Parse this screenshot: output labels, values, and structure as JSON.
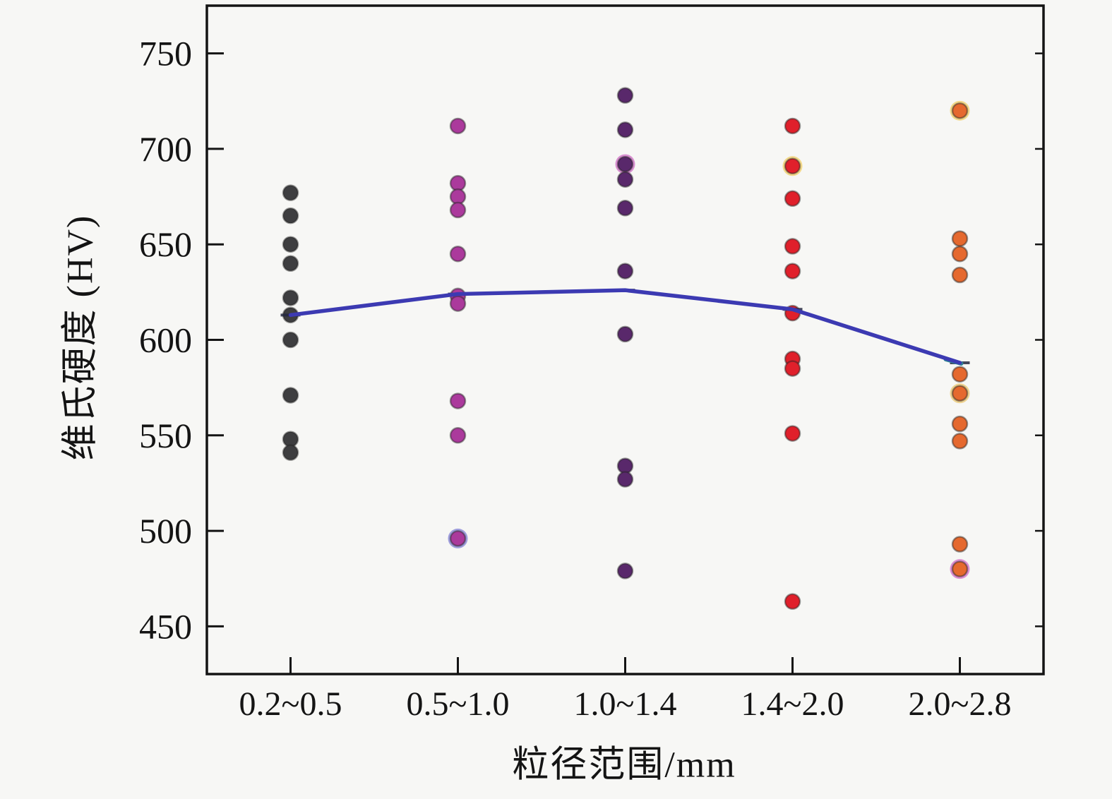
{
  "chart_data": {
    "type": "scatter",
    "title": "",
    "xlabel": "粒径范围/mm",
    "ylabel": "维氏硬度 (HV)",
    "categories": [
      "0.2~0.5",
      "0.5~1.0",
      "1.0~1.4",
      "1.4~2.0",
      "2.0~2.8"
    ],
    "y_ticks": [
      450,
      500,
      550,
      600,
      650,
      700,
      750
    ],
    "ylim": [
      425,
      775
    ],
    "grid": false,
    "legend": "none",
    "series": [
      {
        "name": "0.2~0.5",
        "color": "#3e3e40",
        "values": [
          677,
          665,
          650,
          640,
          622,
          613,
          600,
          571,
          548,
          541
        ]
      },
      {
        "name": "0.5~1.0",
        "color": "#ab3a9c",
        "values": [
          712,
          682,
          675,
          668,
          645,
          623,
          619,
          568,
          550,
          496
        ],
        "halo_points": [
          {
            "value": 496,
            "color": "#5a55c8"
          }
        ]
      },
      {
        "name": "1.0~1.4",
        "color": "#59286b",
        "values": [
          728,
          710,
          692,
          684,
          669,
          636,
          603,
          534,
          527,
          479
        ],
        "halo_points": [
          {
            "value": 692,
            "color": "#c03ab0"
          }
        ]
      },
      {
        "name": "1.4~2.0",
        "color": "#e0202b",
        "values": [
          712,
          691,
          674,
          649,
          636,
          614,
          590,
          585,
          551,
          463
        ],
        "halo_points": [
          {
            "value": 691,
            "color": "#f0c030"
          }
        ]
      },
      {
        "name": "2.0~2.8",
        "color": "#e5692f",
        "values": [
          720,
          653,
          645,
          634,
          582,
          572,
          556,
          547,
          493,
          480
        ],
        "halo_points": [
          {
            "value": 720,
            "color": "#f0c030"
          },
          {
            "value": 572,
            "color": "#e8b43c"
          },
          {
            "value": 480,
            "color": "#c83ab4"
          }
        ]
      }
    ],
    "mean_line": {
      "color": "#3c3ab2",
      "values": [
        613,
        624,
        626,
        616,
        588
      ],
      "end_cap_color": "#2e8296"
    }
  },
  "colors": {
    "background": "#f7f7f5",
    "frame": "#141414",
    "text": "#141414"
  }
}
